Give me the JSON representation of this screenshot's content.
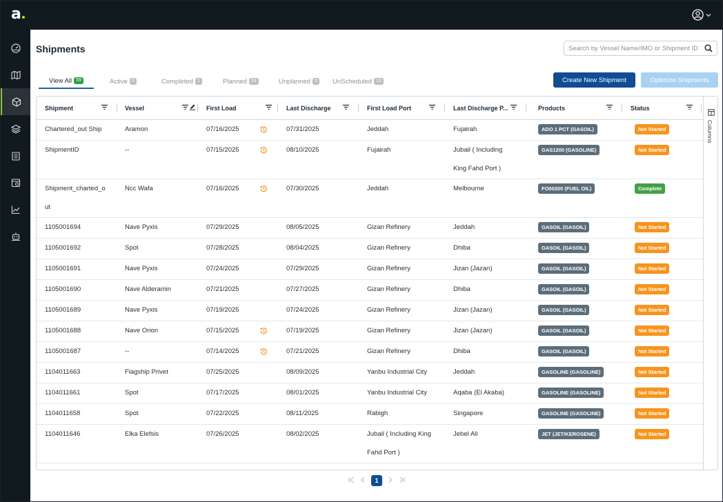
{
  "brand": {
    "logo": "a"
  },
  "page": {
    "title": "Shipments"
  },
  "search": {
    "placeholder": "Search by Vessel Name/IMO or Shipment ID"
  },
  "tabs": [
    {
      "label": "View All",
      "count": "59"
    },
    {
      "label": "Active",
      "count": "0"
    },
    {
      "label": "Completed",
      "count": "1"
    },
    {
      "label": "Planned",
      "count": "53"
    },
    {
      "label": "Unplanned",
      "count": "5"
    },
    {
      "label": "UnScheduled",
      "count": "10"
    }
  ],
  "actions": {
    "create": "Create New Shipment",
    "optimize": "Optimize Shipments"
  },
  "columns": [
    "Shipment",
    "Vessel",
    "First Load",
    "Last Discharge",
    "First Load Port",
    "Last Discharge P...",
    "Products",
    "Status"
  ],
  "columns_panel": {
    "label": "Columns"
  },
  "colors": {
    "not_started": "#f7941d",
    "complete": "#43a047",
    "primary": "#0f4c95",
    "product": "#5c6d7a"
  },
  "rows": [
    {
      "shipment": "Chartered_out Ship",
      "vessel": "Aramon",
      "first_load": "07/16/2025",
      "clock": true,
      "last_discharge": "07/31/2025",
      "first_port": "Jeddah",
      "last_port": "Fujairah",
      "product": "ADO 1 PCT (GASOIL)",
      "status": "Not Started"
    },
    {
      "shipment": "ShipmentID",
      "vessel": "--",
      "first_load": "07/15/2025",
      "clock": true,
      "last_discharge": "08/10/2025",
      "first_port": "Fujairah",
      "last_port": "Jubail ( Including",
      "last_port_2": "King Fahd Port )",
      "product": "GAS1200 (GASOLINE)",
      "status": "Not Started"
    },
    {
      "shipment": "Shipment_charted_o",
      "shipment_2": "ut",
      "vessel": "Ncc Wafa",
      "first_load": "07/16/2025",
      "clock": true,
      "last_discharge": "07/30/2025",
      "first_port": "Jeddah",
      "last_port": "Melbourne",
      "product": "FO00200 (FUEL OIL)",
      "status": "Complete"
    },
    {
      "shipment": "1105001694",
      "vessel": "Nave Pyxis",
      "first_load": "07/29/2025",
      "clock": false,
      "last_discharge": "08/05/2025",
      "first_port": "Gizan Refinery",
      "last_port": "Jeddah",
      "product": "GASOIL (GASOIL)",
      "status": "Not Started"
    },
    {
      "shipment": "1105001692",
      "vessel": "Spot",
      "first_load": "07/28/2025",
      "clock": false,
      "last_discharge": "08/04/2025",
      "first_port": "Gizan Refinery",
      "last_port": "Dhiba",
      "product": "GASOIL (GASOIL)",
      "status": "Not Started"
    },
    {
      "shipment": "1105001691",
      "vessel": "Nave Pyxis",
      "first_load": "07/24/2025",
      "clock": false,
      "last_discharge": "07/29/2025",
      "first_port": "Gizan Refinery",
      "last_port": "Jizan (Jazan)",
      "product": "GASOIL (GASOIL)",
      "status": "Not Started"
    },
    {
      "shipment": "1105001690",
      "vessel": "Nave Alderamin",
      "first_load": "07/21/2025",
      "clock": false,
      "last_discharge": "07/27/2025",
      "first_port": "Gizan Refinery",
      "last_port": "Dhiba",
      "product": "GASOIL (GASOIL)",
      "status": "Not Started"
    },
    {
      "shipment": "1105001689",
      "vessel": "Nave Pyxis",
      "first_load": "07/19/2025",
      "clock": false,
      "last_discharge": "07/24/2025",
      "first_port": "Gizan Refinery",
      "last_port": "Jizan (Jazan)",
      "product": "GASOIL (GASOIL)",
      "status": "Not Started"
    },
    {
      "shipment": "1105001688",
      "vessel": "Nave Orion",
      "first_load": "07/15/2025",
      "clock": true,
      "last_discharge": "07/19/2025",
      "first_port": "Gizan Refinery",
      "last_port": "Jizan (Jazan)",
      "product": "GASOIL (GASOIL)",
      "status": "Not Started"
    },
    {
      "shipment": "1105001687",
      "vessel": "--",
      "first_load": "07/14/2025",
      "clock": true,
      "last_discharge": "07/21/2025",
      "first_port": "Gizan Refinery",
      "last_port": "Dhiba",
      "product": "GASOIL (GASOIL)",
      "status": "Not Started"
    },
    {
      "shipment": "1104011663",
      "vessel": "Flagship Privet",
      "first_load": "07/25/2025",
      "clock": false,
      "last_discharge": "08/09/2025",
      "first_port": "Yanbu Industrial City",
      "last_port": "Jeddah",
      "product": "GASOLINE (GASOLINE)",
      "status": "Not Started"
    },
    {
      "shipment": "1104011661",
      "vessel": "Spot",
      "first_load": "07/17/2025",
      "clock": false,
      "last_discharge": "08/01/2025",
      "first_port": "Yanbu Industrial City",
      "last_port": "Aqaba (El Akaba)",
      "product": "GASOLINE (GASOLINE)",
      "status": "Not Started"
    },
    {
      "shipment": "1104011658",
      "vessel": "Spot",
      "first_load": "07/22/2025",
      "clock": false,
      "last_discharge": "08/11/2025",
      "first_port": "Rabigh",
      "last_port": "Singapore",
      "product": "GASOLINE (GASOLINE)",
      "status": "Not Started"
    },
    {
      "shipment": "1104011646",
      "vessel": "Elka Elefsis",
      "first_load": "07/26/2025",
      "clock": false,
      "last_discharge": "08/02/2025",
      "first_port": "Jubail ( Including King",
      "first_port_2": "Fahd Port )",
      "last_port": "Jebel Ali",
      "product": "JET (JET/KEROSENE)",
      "status": "Not Started"
    }
  ],
  "pager": {
    "current": "1"
  }
}
